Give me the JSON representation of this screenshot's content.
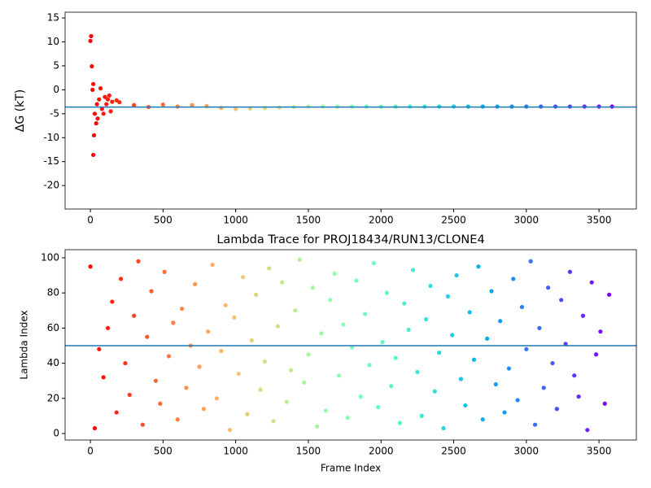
{
  "chart_data": [
    {
      "type": "scatter",
      "ylabel": "ΔG (kT)",
      "x": [
        0,
        5,
        10,
        15,
        20,
        20,
        25,
        30,
        40,
        45,
        50,
        60,
        70,
        80,
        90,
        100,
        110,
        120,
        130,
        140,
        150,
        180,
        200,
        300,
        400,
        500,
        600,
        700,
        800,
        900,
        1000,
        1100,
        1200,
        1300,
        1400,
        1500,
        1600,
        1700,
        1800,
        1900,
        2000,
        2100,
        2200,
        2300,
        2400,
        2500,
        2600,
        2700,
        2800,
        2900,
        3000,
        3100,
        3200,
        3300,
        3400,
        3500,
        3590
      ],
      "values": [
        10.2,
        11.2,
        4.9,
        0,
        1.2,
        -13.6,
        -9.5,
        -5,
        -7,
        -3,
        -6,
        -2,
        0.3,
        -4,
        -5,
        -1.5,
        -3,
        -2,
        -1.2,
        -4.5,
        -2.5,
        -2.2,
        -2.6,
        -3.2,
        -3.6,
        -3.1,
        -3.5,
        -3.2,
        -3.4,
        -3.8,
        -4.0,
        -3.9,
        -3.8,
        -3.7,
        -3.6,
        -3.5,
        -3.5,
        -3.5,
        -3.5,
        -3.5,
        -3.5,
        -3.5,
        -3.5,
        -3.5,
        -3.5,
        -3.5,
        -3.5,
        -3.5,
        -3.5,
        -3.5,
        -3.5,
        -3.5,
        -3.5,
        -3.5,
        -3.5,
        -3.5,
        -3.5
      ],
      "colormap": "rainbow_r",
      "hline": -3.6,
      "hline_color": "#1f77b4",
      "xlim": [
        -174,
        3757
      ],
      "xticks": [
        0,
        500,
        1000,
        1500,
        2000,
        2500,
        3000,
        3500
      ],
      "ylim": [
        -24.9,
        16.2
      ],
      "yticks": [
        -20,
        -15,
        -10,
        -5,
        0,
        5,
        10,
        15
      ]
    },
    {
      "type": "scatter",
      "title": "Lambda Trace for PROJ18434/RUN13/CLONE4",
      "xlabel": "Frame Index",
      "ylabel": "Lambda Index",
      "x": [
        0,
        30,
        60,
        90,
        120,
        150,
        180,
        210,
        240,
        270,
        300,
        330,
        360,
        390,
        420,
        450,
        480,
        510,
        540,
        570,
        600,
        630,
        660,
        690,
        720,
        750,
        780,
        810,
        840,
        870,
        900,
        930,
        960,
        990,
        1020,
        1050,
        1080,
        1110,
        1140,
        1170,
        1200,
        1230,
        1260,
        1290,
        1320,
        1350,
        1380,
        1410,
        1440,
        1470,
        1500,
        1530,
        1560,
        1590,
        1620,
        1650,
        1680,
        1710,
        1740,
        1770,
        1800,
        1830,
        1860,
        1890,
        1920,
        1950,
        1980,
        2010,
        2040,
        2070,
        2100,
        2130,
        2160,
        2190,
        2220,
        2250,
        2280,
        2310,
        2340,
        2370,
        2400,
        2430,
        2460,
        2490,
        2520,
        2550,
        2580,
        2610,
        2640,
        2670,
        2700,
        2730,
        2760,
        2790,
        2820,
        2850,
        2880,
        2910,
        2940,
        2970,
        3000,
        3030,
        3060,
        3090,
        3120,
        3150,
        3180,
        3210,
        3240,
        3270,
        3300,
        3330,
        3360,
        3390,
        3420,
        3450,
        3480,
        3510,
        3540,
        3570
      ],
      "values": [
        95,
        3,
        48,
        32,
        60,
        75,
        12,
        88,
        40,
        22,
        67,
        98,
        5,
        55,
        81,
        30,
        17,
        92,
        44,
        63,
        8,
        71,
        26,
        50,
        85,
        38,
        14,
        58,
        96,
        20,
        47,
        73,
        2,
        66,
        34,
        89,
        11,
        53,
        79,
        25,
        41,
        94,
        7,
        61,
        86,
        18,
        36,
        70,
        99,
        29,
        45,
        83,
        4,
        57,
        13,
        76,
        91,
        33,
        62,
        9,
        49,
        87,
        21,
        68,
        39,
        97,
        15,
        52,
        80,
        27,
        43,
        6,
        74,
        59,
        93,
        35,
        10,
        65,
        84,
        24,
        46,
        3,
        78,
        56,
        90,
        31,
        16,
        69,
        42,
        95,
        8,
        54,
        81,
        28,
        64,
        12,
        37,
        88,
        19,
        72,
        48,
        98,
        5,
        60,
        26,
        83,
        40,
        14,
        76,
        51,
        92,
        33,
        21,
        67,
        2,
        86,
        45,
        58,
        17,
        79
      ],
      "colormap": "rainbow_r",
      "hline": 50,
      "hline_color": "#1f77b4",
      "xlim": [
        -174,
        3757
      ],
      "xticks": [
        0,
        500,
        1000,
        1500,
        2000,
        2500,
        3000,
        3500
      ],
      "ylim": [
        -3.7,
        104.6
      ],
      "yticks": [
        0,
        20,
        40,
        60,
        80,
        100
      ]
    }
  ]
}
